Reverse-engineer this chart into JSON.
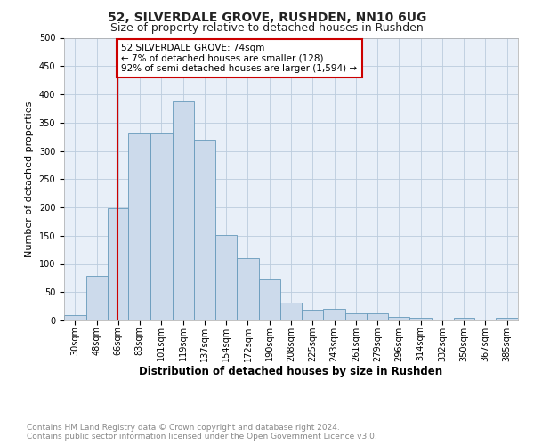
{
  "title": "52, SILVERDALE GROVE, RUSHDEN, NN10 6UG",
  "subtitle": "Size of property relative to detached houses in Rushden",
  "xlabel": "Distribution of detached houses by size in Rushden",
  "ylabel": "Number of detached properties",
  "bar_edges": [
    30,
    48,
    66,
    83,
    101,
    119,
    137,
    154,
    172,
    190,
    208,
    225,
    243,
    261,
    279,
    296,
    314,
    332,
    350,
    367,
    385
  ],
  "bar_heights": [
    10,
    78,
    199,
    332,
    332,
    388,
    319,
    151,
    110,
    73,
    31,
    19,
    21,
    13,
    13,
    6,
    5,
    1,
    5,
    1,
    5
  ],
  "bar_labels": [
    "30sqm",
    "48sqm",
    "66sqm",
    "83sqm",
    "101sqm",
    "119sqm",
    "137sqm",
    "154sqm",
    "172sqm",
    "190sqm",
    "208sqm",
    "225sqm",
    "243sqm",
    "261sqm",
    "279sqm",
    "296sqm",
    "314sqm",
    "332sqm",
    "350sqm",
    "367sqm",
    "385sqm"
  ],
  "bar_color": "#ccdaeb",
  "bar_edge_color": "#6699bb",
  "vline_x": 74,
  "vline_color": "#cc0000",
  "annotation_text": "52 SILVERDALE GROVE: 74sqm\n← 7% of detached houses are smaller (128)\n92% of semi-detached houses are larger (1,594) →",
  "annotation_box_color": "#ffffff",
  "annotation_box_edge": "#cc0000",
  "ylim": [
    0,
    500
  ],
  "yticks": [
    0,
    50,
    100,
    150,
    200,
    250,
    300,
    350,
    400,
    450,
    500
  ],
  "background_color": "#ffffff",
  "axes_bg_color": "#e8eff8",
  "grid_color": "#bbccdd",
  "footer_text": "Contains HM Land Registry data © Crown copyright and database right 2024.\nContains public sector information licensed under the Open Government Licence v3.0.",
  "title_fontsize": 10,
  "subtitle_fontsize": 9,
  "xlabel_fontsize": 8.5,
  "ylabel_fontsize": 8,
  "tick_fontsize": 7,
  "annotation_fontsize": 7.5,
  "footer_fontsize": 6.5
}
